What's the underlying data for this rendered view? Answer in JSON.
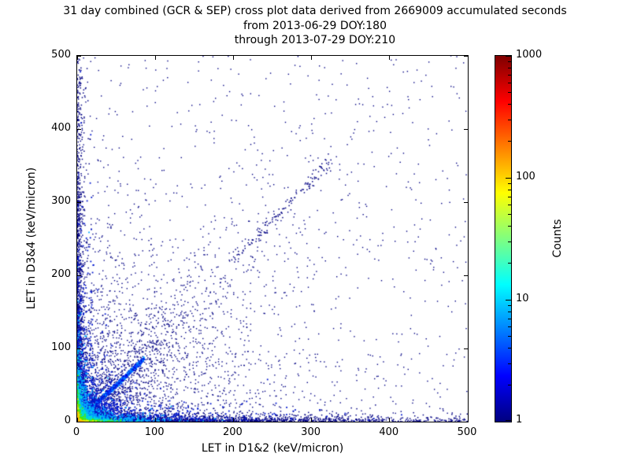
{
  "chart_data": {
    "type": "scatter",
    "title_lines": [
      "31 day combined (GCR & SEP) cross plot data derived from 2669009 accumulated seconds",
      "from 2013-06-29 DOY:180",
      "through 2013-07-29 DOY:210"
    ],
    "xlabel": "LET in D1&2 (keV/micron)",
    "ylabel": "LET in D3&4 (keV/micron)",
    "xlim": [
      0,
      500
    ],
    "ylim": [
      0,
      500
    ],
    "x_ticks": [
      0,
      100,
      200,
      300,
      400,
      500
    ],
    "y_ticks": [
      0,
      100,
      200,
      300,
      400,
      500
    ],
    "grid": false,
    "description": "2D density cross plot of LET measured in detectors D1&2 vs D3&4. Counts are colored on a log scale (jet colormap, 1 to 1000). A very dense multi-colored hotspot (yellow/green/cyan core) sits at the origin, dense bands of low-count points run along both axes out to 500, a bright blue correlation line runs along y=x from the origin to about (85,85), a fainter diagonal streak lies near (200,220)-(325,360), and sparse single-count dark blue points are scattered across the whole plane with density decreasing away from the origin.",
    "colorbar": {
      "label": "Counts",
      "scale": "log",
      "min": 1,
      "max": 1000,
      "ticks": [
        1,
        10,
        100,
        1000
      ],
      "colormap": "jet",
      "gradient_stops": [
        "#00007f",
        "#0000ff",
        "#00ffff",
        "#ffff00",
        "#ff0000",
        "#7f0000"
      ],
      "gradient_positions": [
        0,
        12.5,
        37.5,
        62.5,
        87.5,
        100
      ]
    },
    "density_model": {
      "seed": 1234,
      "base_color": "#000083",
      "point_size": 1.7,
      "components": {
        "background_iso": {
          "count": 2200,
          "scale": 85
        },
        "correlated_cloud": {
          "count": 900,
          "scale": 130,
          "spread": 0.3,
          "noise": 10
        },
        "far_uniform": {
          "count": 600
        },
        "x_band": {
          "count": 1700,
          "scale_x": 170,
          "scale_y": 3.2,
          "uniform_frac": 0.15
        },
        "y_band": {
          "count": 1400,
          "scale_y": 170,
          "scale_x": 3.2,
          "uniform_frac": 0.15
        },
        "main_diagonal": {
          "count": 1500,
          "max": 86,
          "noise": 1.4,
          "colors": [
            "#0000d8",
            "#0030ff",
            "#0060ff",
            "#00a0ff"
          ]
        },
        "upper_streak": {
          "count": 130,
          "x_min": 195,
          "x_max": 325,
          "slope": 1.1,
          "noise": 5
        },
        "hotspot_layers": [
          {
            "count": 2200,
            "scale": 18.0,
            "color": "#0018d0"
          },
          {
            "count": 1500,
            "scale": 9.0,
            "color": "#00a8ff"
          },
          {
            "count": 1100,
            "scale": 4.5,
            "color": "#00e0d0"
          },
          {
            "count": 800,
            "scale": 2.4,
            "color": "#50e800"
          },
          {
            "count": 450,
            "scale": 1.3,
            "color": "#e8e800"
          },
          {
            "count": 200,
            "scale": 0.7,
            "color": "#ffb000"
          }
        ]
      }
    }
  }
}
